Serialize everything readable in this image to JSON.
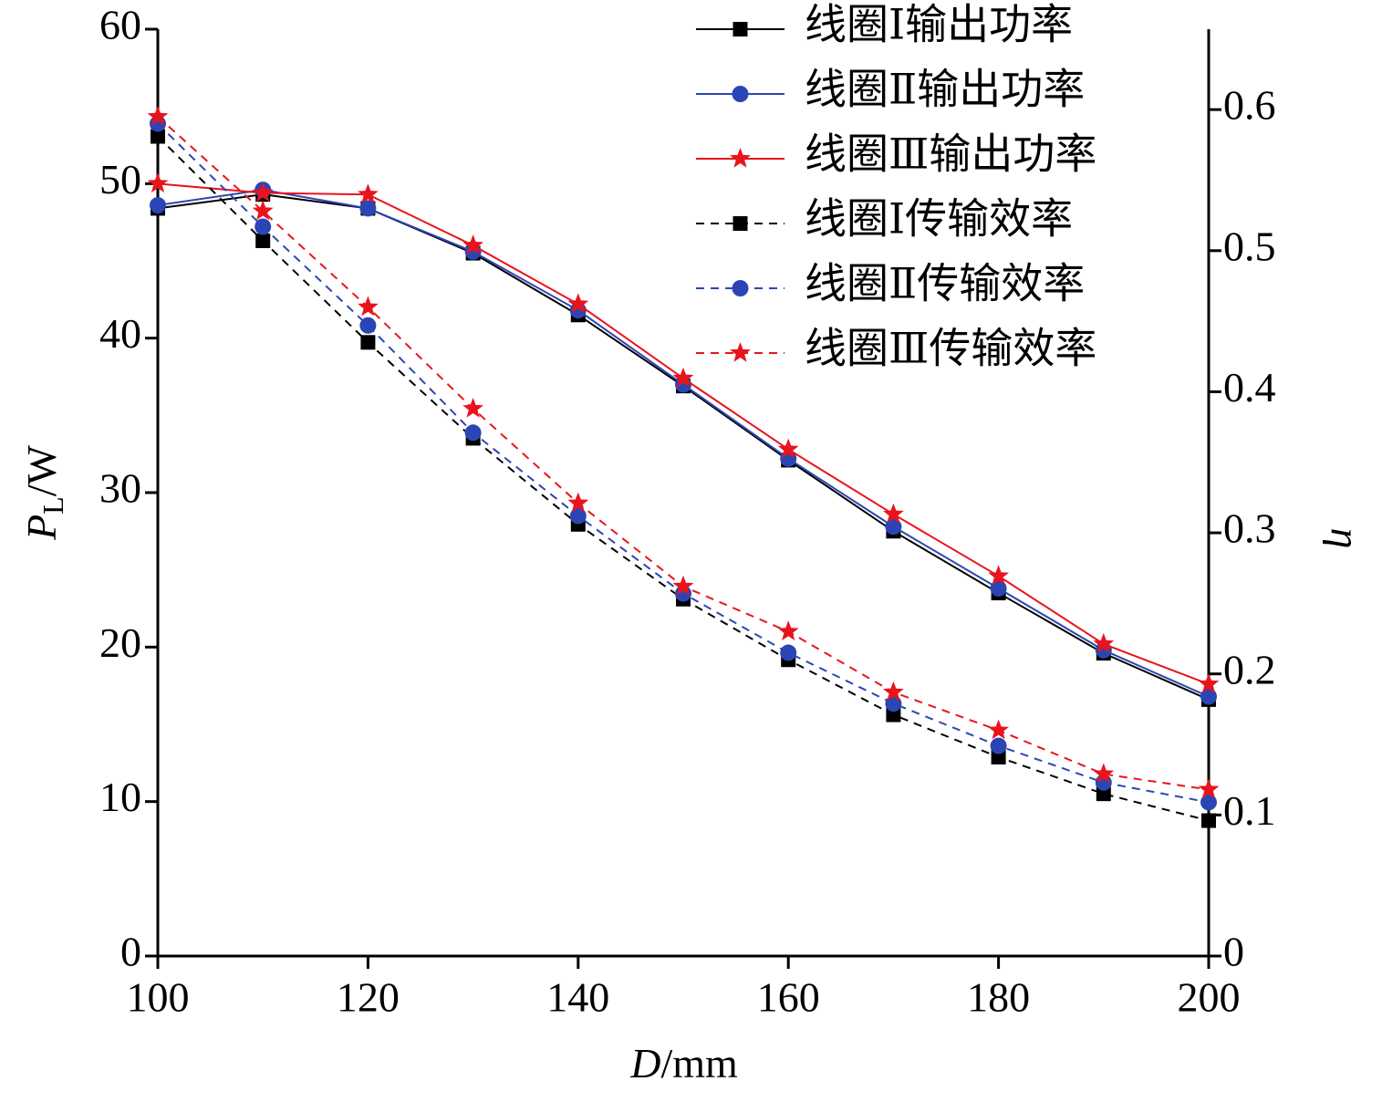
{
  "chart_data": {
    "type": "line",
    "x_label": {
      "symbol": "D",
      "unit": "/mm"
    },
    "y_label": {
      "symbol": "P",
      "subscript": "L",
      "unit": "/W"
    },
    "y2_label": "η",
    "x": [
      100,
      110,
      120,
      130,
      140,
      150,
      160,
      170,
      180,
      190,
      200
    ],
    "xlim": [
      100,
      200
    ],
    "xticks": [
      100,
      120,
      140,
      160,
      180,
      200
    ],
    "ylim": [
      0,
      60
    ],
    "yticks": [
      0,
      10,
      20,
      30,
      40,
      50,
      60
    ],
    "y2lim": [
      0,
      0.657
    ],
    "y2ticks": [
      0,
      0.1,
      0.2,
      0.3,
      0.4,
      0.5,
      0.6
    ],
    "legend": "top-right",
    "series": [
      {
        "name": "线圈Ⅰ输出功率",
        "color": "#000000",
        "marker": "square",
        "dash": false,
        "values": [
          48.4,
          49.3,
          48.4,
          45.5,
          41.5,
          36.9,
          32.1,
          27.5,
          23.5,
          19.6,
          16.6
        ]
      },
      {
        "name": "线圈Ⅱ输出功率",
        "color": "#2b46b4",
        "marker": "circle",
        "dash": false,
        "values": [
          48.6,
          49.6,
          48.4,
          45.6,
          41.8,
          37.0,
          32.2,
          27.8,
          23.8,
          19.8,
          16.8
        ]
      },
      {
        "name": "线圈Ⅲ输出功率",
        "color": "#e8141c",
        "marker": "star",
        "dash": false,
        "values": [
          50.0,
          49.4,
          49.3,
          46.0,
          42.2,
          37.4,
          32.8,
          28.6,
          24.6,
          20.2,
          17.6
        ]
      },
      {
        "name": "线圈Ⅰ传输效率",
        "color": "#000000",
        "marker": "square",
        "dash": true,
        "axis": "y2",
        "values": [
          0.581,
          0.507,
          0.435,
          0.367,
          0.306,
          0.253,
          0.21,
          0.171,
          0.141,
          0.115,
          0.096
        ]
      },
      {
        "name": "线圈Ⅱ传输效率",
        "color": "#2b46b4",
        "marker": "circle",
        "dash": true,
        "axis": "y2",
        "values": [
          0.59,
          0.517,
          0.447,
          0.371,
          0.312,
          0.257,
          0.215,
          0.179,
          0.149,
          0.123,
          0.109
        ]
      },
      {
        "name": "线圈Ⅲ传输效率",
        "color": "#e8141c",
        "marker": "star",
        "dash": true,
        "axis": "y2",
        "values": [
          0.595,
          0.528,
          0.46,
          0.388,
          0.321,
          0.262,
          0.23,
          0.187,
          0.16,
          0.129,
          0.118
        ]
      }
    ]
  }
}
